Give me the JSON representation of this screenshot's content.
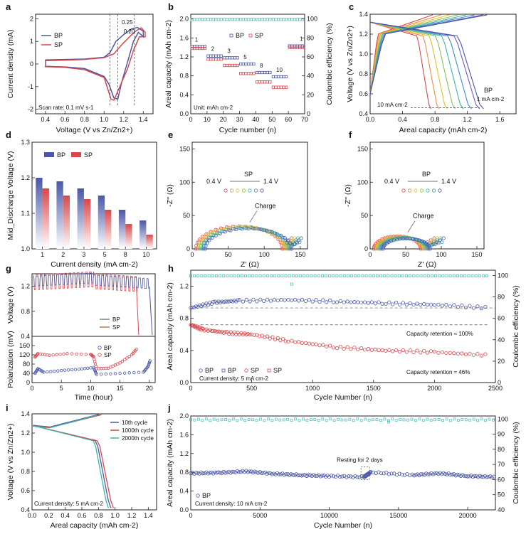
{
  "chart_data": [
    {
      "panel": "a",
      "type": "line",
      "xlabel": "Voltage (V vs Zn/Zn2+)",
      "ylabel": "Current density (mA)",
      "xlim": [
        0.3,
        1.5
      ],
      "ylim": [
        -2.2,
        2.2
      ],
      "xticks": [
        "0.4",
        "0.6",
        "0.8",
        "1.0",
        "1.2",
        "1.4"
      ],
      "yticks": [
        "-2",
        "-1",
        "0",
        "1",
        "2"
      ],
      "legend": [
        "BP",
        "SP"
      ],
      "colors": [
        "#4a57a6",
        "#d9474c"
      ],
      "annotations": [
        "Scan rate: 0.1 mV s-1",
        "0.25",
        "0.20"
      ],
      "series": [
        {
          "name": "BP",
          "x": [
            0.4,
            0.6,
            0.8,
            1.0,
            1.06,
            1.12,
            1.2,
            1.28,
            1.34,
            1.4,
            1.4,
            1.35,
            1.3,
            1.24,
            1.18,
            1.14,
            1.1,
            1.05,
            1.0,
            0.8,
            0.6,
            0.4
          ],
          "y": [
            0.18,
            0.2,
            0.22,
            0.3,
            0.5,
            1.0,
            1.3,
            1.55,
            1.62,
            1.45,
            1.2,
            1.4,
            1.0,
            0.1,
            -0.8,
            -1.55,
            -1.5,
            -0.9,
            -0.55,
            -0.2,
            -0.13,
            -0.1
          ]
        },
        {
          "name": "SP",
          "x": [
            0.4,
            0.6,
            0.8,
            1.0,
            1.1,
            1.18,
            1.26,
            1.32,
            1.38,
            1.42,
            1.42,
            1.36,
            1.3,
            1.24,
            1.16,
            1.1,
            1.07,
            1.03,
            1.0,
            0.8,
            0.6,
            0.4
          ],
          "y": [
            0.15,
            0.17,
            0.2,
            0.28,
            0.45,
            0.85,
            1.2,
            1.45,
            1.6,
            1.4,
            1.2,
            1.2,
            0.6,
            -0.2,
            -1.0,
            -1.6,
            -1.55,
            -1.0,
            -0.6,
            -0.25,
            -0.15,
            -0.12
          ]
        }
      ]
    },
    {
      "panel": "b",
      "type": "scatter",
      "xlabel": "Cycle number (n)",
      "ylabel": "Areal capacity (mAh cm-2)",
      "y2label": "Coulombic efficiency (%)",
      "xlim": [
        0,
        70
      ],
      "ylim": [
        0,
        2.1
      ],
      "y2lim": [
        0,
        105
      ],
      "xticks": [
        "0",
        "10",
        "20",
        "30",
        "40",
        "50",
        "60",
        "70"
      ],
      "yticks": [
        "0.0",
        "0.4",
        "0.8",
        "1.2",
        "1.6",
        "2.0"
      ],
      "y2ticks": [
        "0",
        "20",
        "40",
        "60",
        "80",
        "100"
      ],
      "legend": [
        "BP",
        "SP"
      ],
      "annotations": [
        "Unit: mAh cm-2"
      ],
      "rate_labels": [
        "1",
        "2",
        "3",
        "5",
        "8",
        "10",
        "1"
      ],
      "segments_x": [
        [
          0,
          10
        ],
        [
          10,
          20
        ],
        [
          20,
          30
        ],
        [
          30,
          40
        ],
        [
          40,
          50
        ],
        [
          50,
          60
        ],
        [
          60,
          70
        ]
      ],
      "bp_capacity": [
        1.42,
        1.22,
        1.18,
        1.05,
        0.87,
        0.78,
        1.43
      ],
      "sp_capacity": [
        1.38,
        1.15,
        1.02,
        0.85,
        0.67,
        0.56,
        1.4
      ],
      "coulombic_efficiency": 99.5
    },
    {
      "panel": "c",
      "type": "line",
      "xlabel": "Areal capacity (mAh cm-2)",
      "ylabel": "Voltage (V vs Zn/Zn2+)",
      "xlim": [
        0,
        1.8
      ],
      "ylim": [
        0.4,
        1.4
      ],
      "xticks": [
        "0.0",
        "0.4",
        "0.8",
        "1.2",
        "1.6"
      ],
      "yticks": [
        "0.4",
        "0.6",
        "0.8",
        "1.0",
        "1.2",
        "1.4"
      ],
      "annotations": [
        "BP",
        "1 mA cm-2",
        "10 mA cm-2"
      ],
      "end_capacities": [
        0.75,
        0.85,
        0.95,
        1.05,
        1.15,
        1.25,
        1.35,
        1.4
      ],
      "colors": [
        "#d9474c",
        "#f28b3c",
        "#e6c229",
        "#8cc152",
        "#3cb6a5",
        "#3b8ec9",
        "#6a5acd",
        "#4a57a6"
      ]
    },
    {
      "panel": "d",
      "type": "bar",
      "xlabel": "Current density (mA cm-2)",
      "ylabel": "Mid_Discharge Voltage (V)",
      "ylim": [
        1.0,
        1.3
      ],
      "yticks": [
        "1.0",
        "1.1",
        "1.2",
        "1.3"
      ],
      "categories": [
        "1",
        "2",
        "3",
        "5",
        "8",
        "10"
      ],
      "series": [
        {
          "name": "BP",
          "values": [
            1.2,
            1.19,
            1.17,
            1.15,
            1.11,
            1.08
          ]
        },
        {
          "name": "SP",
          "values": [
            1.17,
            1.15,
            1.14,
            1.11,
            1.07,
            1.04
          ]
        }
      ]
    },
    {
      "panel": "e",
      "type": "scatter",
      "xlabel": "Z' (Ω)",
      "ylabel": "-Z'' (Ω)",
      "xlim": [
        0,
        160
      ],
      "ylim": [
        0,
        160
      ],
      "xticks": [
        "0",
        "50",
        "100",
        "150"
      ],
      "yticks": [
        "0",
        "50",
        "100",
        "150"
      ],
      "annotations": [
        "SP",
        "0.4 V",
        "1.4 V",
        "Charge"
      ],
      "arc_center": 65,
      "arc_radius": 60,
      "arc_height": 34,
      "tail_end": 138,
      "colors": [
        "#d9474c",
        "#f28b3c",
        "#e6c229",
        "#8cc152",
        "#3cb6a5",
        "#3b8ec9",
        "#4a57a6"
      ]
    },
    {
      "panel": "f",
      "type": "scatter",
      "xlabel": "Z' (Ω)",
      "ylabel": "-Z'' (Ω)",
      "xlim": [
        0,
        160
      ],
      "ylim": [
        0,
        160
      ],
      "xticks": [
        "0",
        "50",
        "100",
        "150"
      ],
      "yticks": [
        "0",
        "50",
        "100",
        "150"
      ],
      "annotations": [
        "BP",
        "0.4 V",
        "1.4 V",
        "Charge"
      ],
      "arc_center": 38,
      "arc_radius": 33,
      "arc_height": 19,
      "tail_end": 90,
      "colors": [
        "#d9474c",
        "#f28b3c",
        "#e6c229",
        "#8cc152",
        "#3cb6a5",
        "#3b8ec9",
        "#4a57a6"
      ]
    },
    {
      "panel": "g",
      "type": "line",
      "xlabel": "Time (hour)",
      "ylabel_top": "Voltage (V)",
      "ylabel_bottom": "Polarization (mV)",
      "xlim": [
        0,
        21
      ],
      "xticks": [
        "0",
        "5",
        "10",
        "15",
        "20"
      ],
      "top_ylim": [
        0.4,
        1.4
      ],
      "top_yticks": [
        "0.4",
        "0.8",
        "1.2"
      ],
      "bottom_ylim": [
        0,
        200
      ],
      "bottom_yticks": [
        "0",
        "40",
        "80",
        "120",
        "160"
      ],
      "legend": [
        "BP",
        "SP"
      ],
      "bp_polarization": [
        [
          0.5,
          40
        ],
        [
          1,
          60
        ],
        [
          2,
          45
        ],
        [
          5,
          52
        ],
        [
          8,
          58
        ],
        [
          10.5,
          65
        ],
        [
          11,
          35
        ],
        [
          15,
          40
        ],
        [
          19,
          45
        ],
        [
          19.8,
          70
        ],
        [
          20.2,
          100
        ]
      ],
      "sp_polarization": [
        [
          0.5,
          110
        ],
        [
          1,
          125
        ],
        [
          3,
          118
        ],
        [
          6,
          125
        ],
        [
          10,
          122
        ],
        [
          10.5,
          112
        ],
        [
          11,
          60
        ],
        [
          13,
          62
        ],
        [
          15,
          85
        ],
        [
          17,
          120
        ],
        [
          18,
          150
        ]
      ]
    },
    {
      "panel": "h",
      "type": "scatter",
      "xlabel": "Cycle Number (n)",
      "ylabel": "Areal capacity (mAh cm-2)",
      "y2label": "Coulombic efficiency (%)",
      "xlim": [
        0,
        2500
      ],
      "ylim": [
        0,
        1.4
      ],
      "y2lim": [
        0,
        105
      ],
      "xticks": [
        "0",
        "500",
        "1000",
        "1500",
        "2000",
        "2500"
      ],
      "yticks": [
        "0.0",
        "0.4",
        "0.8",
        "1.2"
      ],
      "y2ticks": [
        "0",
        "20",
        "40",
        "60",
        "80",
        "100"
      ],
      "legend": [
        "BP",
        "BP",
        "SP",
        "SP"
      ],
      "annotations": [
        "Capacity retention ≈ 100%",
        "Capacity retention ≈ 46%",
        "Current density: 5 mA cm-2"
      ],
      "bp_capacity": [
        [
          0,
          0.93
        ],
        [
          200,
          1.0
        ],
        [
          400,
          1.02
        ],
        [
          800,
          1.03
        ],
        [
          1200,
          1.01
        ],
        [
          1600,
          0.99
        ],
        [
          2000,
          0.97
        ],
        [
          2450,
          0.93
        ]
      ],
      "sp_capacity": [
        [
          0,
          0.72
        ],
        [
          100,
          0.66
        ],
        [
          300,
          0.62
        ],
        [
          500,
          0.6
        ],
        [
          800,
          0.52
        ],
        [
          1200,
          0.44
        ],
        [
          1600,
          0.4
        ],
        [
          2000,
          0.38
        ],
        [
          2450,
          0.34
        ]
      ],
      "coulombic_efficiency": 99.7
    },
    {
      "panel": "i",
      "type": "line",
      "xlabel": "Areal capacity (mAh cm-2)",
      "ylabel": "Voltage (V vs Zn/Zn2+)",
      "xlim": [
        0,
        1.5
      ],
      "ylim": [
        0.4,
        1.4
      ],
      "xticks": [
        "0.0",
        "0.2",
        "0.4",
        "0.6",
        "0.8",
        "1.0",
        "1.2",
        "1.4"
      ],
      "yticks": [
        "0.4",
        "0.6",
        "0.8",
        "1.0",
        "1.2",
        "1.4"
      ],
      "annotations": [
        "Current density: 5 mA cm-2"
      ],
      "series": [
        {
          "name": "10th cycle",
          "end": 0.95,
          "color": "#4a57a6"
        },
        {
          "name": "1000th cycle",
          "end": 0.98,
          "color": "#d9474c"
        },
        {
          "name": "2000th cycle",
          "end": 0.92,
          "color": "#3cb6a5"
        }
      ]
    },
    {
      "panel": "j",
      "type": "scatter",
      "xlabel": "Cycle Number (n)",
      "ylabel": "Areal capacity (mAh cm-2)",
      "y2label": "Coulombic efficiency (%)",
      "xlim": [
        0,
        22000
      ],
      "ylim": [
        0,
        2.0
      ],
      "y2lim": [
        40,
        102
      ],
      "xticks": [
        "0",
        "5000",
        "10000",
        "15000",
        "20000"
      ],
      "yticks": [
        "0.0",
        "0.4",
        "0.8",
        "1.2",
        "1.6",
        "2.0"
      ],
      "y2ticks": [
        "40",
        "50",
        "60",
        "70",
        "80",
        "90",
        "100"
      ],
      "legend": [
        "BP"
      ],
      "annotations": [
        "Resting for 2 days",
        "Current density: 10 mA cm-2"
      ],
      "bp_capacity": [
        [
          0,
          0.78
        ],
        [
          2000,
          0.79
        ],
        [
          4000,
          0.82
        ],
        [
          6000,
          0.77
        ],
        [
          8000,
          0.74
        ],
        [
          10000,
          0.72
        ],
        [
          12500,
          0.7
        ],
        [
          13000,
          0.8
        ],
        [
          16000,
          0.74
        ],
        [
          18000,
          0.78
        ],
        [
          20000,
          0.72
        ],
        [
          22000,
          0.7
        ]
      ],
      "coulombic_efficiency": 99.5
    }
  ]
}
